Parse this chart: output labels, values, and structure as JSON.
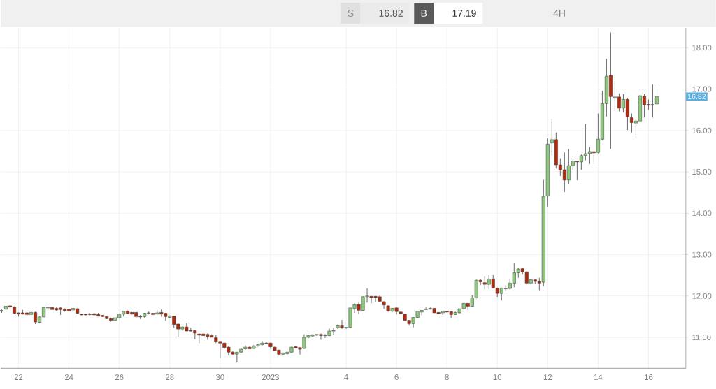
{
  "chart_data": {
    "type": "candlestick",
    "x": [
      "2022-12-21T08:00",
      "2022-12-21T12:00",
      "2022-12-21T16:00",
      "2022-12-21T20:00",
      "2022-12-22T00:00",
      "2022-12-22T04:00",
      "2022-12-22T08:00",
      "2022-12-22T12:00",
      "2022-12-22T16:00",
      "2022-12-22T20:00",
      "2022-12-23T00:00",
      "2022-12-23T04:00",
      "2022-12-23T08:00",
      "2022-12-23T12:00",
      "2022-12-23T16:00",
      "2022-12-23T20:00",
      "2022-12-24T00:00",
      "2022-12-24T04:00",
      "2022-12-24T08:00",
      "2022-12-24T12:00",
      "2022-12-24T16:00",
      "2022-12-24T20:00",
      "2022-12-25T00:00",
      "2022-12-25T04:00",
      "2022-12-25T08:00",
      "2022-12-25T12:00",
      "2022-12-25T16:00",
      "2022-12-25T20:00",
      "2022-12-26T00:00",
      "2022-12-26T04:00",
      "2022-12-26T08:00",
      "2022-12-26T12:00",
      "2022-12-26T16:00",
      "2022-12-26T20:00",
      "2022-12-27T00:00",
      "2022-12-27T04:00",
      "2022-12-27T08:00",
      "2022-12-27T12:00",
      "2022-12-27T16:00",
      "2022-12-27T20:00",
      "2022-12-28T00:00",
      "2022-12-28T04:00",
      "2022-12-28T08:00",
      "2022-12-28T12:00",
      "2022-12-28T16:00",
      "2022-12-28T20:00",
      "2022-12-29T00:00",
      "2022-12-29T04:00",
      "2022-12-29T08:00",
      "2022-12-29T12:00",
      "2022-12-29T16:00",
      "2022-12-29T20:00",
      "2022-12-30T00:00",
      "2022-12-30T04:00",
      "2022-12-30T08:00",
      "2022-12-30T12:00",
      "2022-12-30T16:00",
      "2022-12-30T20:00",
      "2022-12-31T00:00",
      "2022-12-31T04:00",
      "2022-12-31T08:00",
      "2022-12-31T12:00",
      "2022-12-31T16:00",
      "2022-12-31T20:00",
      "2023-01-01T00:00",
      "2023-01-01T04:00",
      "2023-01-01T08:00",
      "2023-01-01T12:00",
      "2023-01-01T16:00",
      "2023-01-01T20:00",
      "2023-01-02T00:00",
      "2023-01-02T04:00",
      "2023-01-02T08:00",
      "2023-01-02T12:00",
      "2023-01-02T16:00",
      "2023-01-02T20:00",
      "2023-01-03T00:00",
      "2023-01-03T04:00",
      "2023-01-03T08:00",
      "2023-01-03T12:00",
      "2023-01-03T16:00",
      "2023-01-03T20:00",
      "2023-01-04T00:00",
      "2023-01-04T04:00",
      "2023-01-04T08:00",
      "2023-01-04T12:00",
      "2023-01-04T16:00",
      "2023-01-04T20:00",
      "2023-01-05T00:00",
      "2023-01-05T04:00",
      "2023-01-05T08:00",
      "2023-01-05T12:00",
      "2023-01-05T16:00",
      "2023-01-05T20:00",
      "2023-01-06T00:00",
      "2023-01-06T04:00",
      "2023-01-06T08:00",
      "2023-01-06T12:00",
      "2023-01-06T16:00",
      "2023-01-06T20:00",
      "2023-01-07T00:00",
      "2023-01-07T04:00",
      "2023-01-07T08:00",
      "2023-01-07T12:00",
      "2023-01-07T16:00",
      "2023-01-07T20:00",
      "2023-01-08T00:00",
      "2023-01-08T04:00",
      "2023-01-08T08:00",
      "2023-01-08T12:00",
      "2023-01-08T16:00",
      "2023-01-08T20:00",
      "2023-01-09T00:00",
      "2023-01-09T04:00",
      "2023-01-09T08:00",
      "2023-01-09T12:00",
      "2023-01-09T16:00",
      "2023-01-09T20:00",
      "2023-01-10T00:00",
      "2023-01-10T04:00",
      "2023-01-10T08:00",
      "2023-01-10T12:00",
      "2023-01-10T16:00",
      "2023-01-10T20:00",
      "2023-01-11T00:00",
      "2023-01-11T04:00",
      "2023-01-11T08:00",
      "2023-01-11T12:00",
      "2023-01-11T16:00",
      "2023-01-11T20:00",
      "2023-01-12T00:00",
      "2023-01-12T04:00",
      "2023-01-12T08:00",
      "2023-01-12T12:00",
      "2023-01-12T16:00",
      "2023-01-12T20:00",
      "2023-01-13T00:00",
      "2023-01-13T04:00",
      "2023-01-13T08:00",
      "2023-01-13T12:00",
      "2023-01-13T16:00",
      "2023-01-13T20:00",
      "2023-01-14T00:00",
      "2023-01-14T04:00",
      "2023-01-14T08:00",
      "2023-01-14T12:00",
      "2023-01-14T16:00",
      "2023-01-14T20:00",
      "2023-01-15T00:00",
      "2023-01-15T04:00",
      "2023-01-15T08:00",
      "2023-01-15T12:00",
      "2023-01-15T16:00",
      "2023-01-15T20:00",
      "2023-01-16T00:00",
      "2023-01-16T04:00",
      "2023-01-16T08:00"
    ],
    "ohlc": [
      [
        11.63,
        11.68,
        11.59,
        11.65
      ],
      [
        11.68,
        11.78,
        11.65,
        11.75
      ],
      [
        11.76,
        11.78,
        11.62,
        11.73
      ],
      [
        11.73,
        11.75,
        11.56,
        11.58
      ],
      [
        11.59,
        11.6,
        11.5,
        11.56
      ],
      [
        11.59,
        11.66,
        11.55,
        11.56
      ],
      [
        11.59,
        11.6,
        11.52,
        11.55
      ],
      [
        11.55,
        11.62,
        11.53,
        11.6
      ],
      [
        11.6,
        11.62,
        11.32,
        11.37
      ],
      [
        11.36,
        11.5,
        11.35,
        11.49
      ],
      [
        11.49,
        11.72,
        11.49,
        11.72
      ],
      [
        11.71,
        11.74,
        11.64,
        11.72
      ],
      [
        11.72,
        11.75,
        11.67,
        11.67
      ],
      [
        11.7,
        11.72,
        11.64,
        11.66
      ],
      [
        11.71,
        11.72,
        11.54,
        11.67
      ],
      [
        11.68,
        11.7,
        11.62,
        11.64
      ],
      [
        11.68,
        11.69,
        11.62,
        11.63
      ],
      [
        11.66,
        11.7,
        11.65,
        11.7
      ],
      [
        11.69,
        11.7,
        11.57,
        11.58
      ],
      [
        11.56,
        11.57,
        11.53,
        11.54
      ],
      [
        11.56,
        11.57,
        11.53,
        11.54
      ],
      [
        11.56,
        11.58,
        11.53,
        11.55
      ],
      [
        11.57,
        11.58,
        11.53,
        11.54
      ],
      [
        11.55,
        11.59,
        11.5,
        11.51
      ],
      [
        11.53,
        11.54,
        11.49,
        11.5
      ],
      [
        11.5,
        11.51,
        11.44,
        11.45
      ],
      [
        11.45,
        11.47,
        11.38,
        11.41
      ],
      [
        11.41,
        11.48,
        11.4,
        11.47
      ],
      [
        11.47,
        11.57,
        11.45,
        11.56
      ],
      [
        11.56,
        11.64,
        11.5,
        11.63
      ],
      [
        11.63,
        11.65,
        11.56,
        11.57
      ],
      [
        11.6,
        11.61,
        11.55,
        11.56
      ],
      [
        11.6,
        11.61,
        11.47,
        11.5
      ],
      [
        11.5,
        11.54,
        11.44,
        11.49
      ],
      [
        11.5,
        11.59,
        11.46,
        11.58
      ],
      [
        11.58,
        11.62,
        11.55,
        11.59
      ],
      [
        11.58,
        11.59,
        11.55,
        11.55
      ],
      [
        11.56,
        11.66,
        11.55,
        11.59
      ],
      [
        11.6,
        11.68,
        11.5,
        11.56
      ],
      [
        11.58,
        11.59,
        11.4,
        11.5
      ],
      [
        11.48,
        11.52,
        11.46,
        11.52
      ],
      [
        11.51,
        11.52,
        11.23,
        11.31
      ],
      [
        11.32,
        11.33,
        11.01,
        11.2
      ],
      [
        11.2,
        11.27,
        11.15,
        11.25
      ],
      [
        11.25,
        11.34,
        11.15,
        11.15
      ],
      [
        11.16,
        11.23,
        11.14,
        11.15
      ],
      [
        11.16,
        11.17,
        10.95,
        11.1
      ],
      [
        11.08,
        11.09,
        10.86,
        11.05
      ],
      [
        11.08,
        11.09,
        11.04,
        11.04
      ],
      [
        11.07,
        11.09,
        10.94,
        11.02
      ],
      [
        11.04,
        11.07,
        11.0,
        11.0
      ],
      [
        10.99,
        11.05,
        10.86,
        10.9
      ],
      [
        10.9,
        10.91,
        10.5,
        10.86
      ],
      [
        10.86,
        10.87,
        10.72,
        10.75
      ],
      [
        10.76,
        10.78,
        10.56,
        10.64
      ],
      [
        10.64,
        10.66,
        10.58,
        10.59
      ],
      [
        10.59,
        10.64,
        10.39,
        10.64
      ],
      [
        10.64,
        10.73,
        10.62,
        10.71
      ],
      [
        10.72,
        10.81,
        10.7,
        10.76
      ],
      [
        10.76,
        10.77,
        10.72,
        10.72
      ],
      [
        10.73,
        10.81,
        10.72,
        10.79
      ],
      [
        10.79,
        10.82,
        10.77,
        10.82
      ],
      [
        10.82,
        10.91,
        10.8,
        10.86
      ],
      [
        10.86,
        10.88,
        10.84,
        10.85
      ],
      [
        10.86,
        10.87,
        10.72,
        10.77
      ],
      [
        10.76,
        10.77,
        10.66,
        10.68
      ],
      [
        10.69,
        10.7,
        10.56,
        10.59
      ],
      [
        10.59,
        10.63,
        10.57,
        10.62
      ],
      [
        10.6,
        10.64,
        10.59,
        10.64
      ],
      [
        10.64,
        10.77,
        10.63,
        10.76
      ],
      [
        10.77,
        10.79,
        10.73,
        10.74
      ],
      [
        10.75,
        10.76,
        10.58,
        10.71
      ],
      [
        10.73,
        11.07,
        10.72,
        11.0
      ],
      [
        11.0,
        11.05,
        10.98,
        11.04
      ],
      [
        11.03,
        11.07,
        11.01,
        11.06
      ],
      [
        11.05,
        11.08,
        11.04,
        11.07
      ],
      [
        11.07,
        11.09,
        10.94,
        11.04
      ],
      [
        11.04,
        11.08,
        10.98,
        11.05
      ],
      [
        11.04,
        11.21,
        11.03,
        11.15
      ],
      [
        11.15,
        11.23,
        11.06,
        11.16
      ],
      [
        11.23,
        11.31,
        11.2,
        11.28
      ],
      [
        11.28,
        11.42,
        11.2,
        11.23
      ],
      [
        11.23,
        11.25,
        11.2,
        11.24
      ],
      [
        11.24,
        11.71,
        11.22,
        11.71
      ],
      [
        11.7,
        11.82,
        11.59,
        11.79
      ],
      [
        11.79,
        11.84,
        11.56,
        11.65
      ],
      [
        11.65,
        11.99,
        11.64,
        11.98
      ],
      [
        11.98,
        12.18,
        11.84,
        12.0
      ],
      [
        11.99,
        12.0,
        11.82,
        11.96
      ],
      [
        11.99,
        12.0,
        11.86,
        11.96
      ],
      [
        11.98,
        12.02,
        11.86,
        11.87
      ],
      [
        11.86,
        11.87,
        11.69,
        11.78
      ],
      [
        11.76,
        11.77,
        11.62,
        11.63
      ],
      [
        11.63,
        11.71,
        11.61,
        11.7
      ],
      [
        11.71,
        11.72,
        11.55,
        11.62
      ],
      [
        11.61,
        11.62,
        11.56,
        11.57
      ],
      [
        11.56,
        11.57,
        11.4,
        11.41
      ],
      [
        11.41,
        11.42,
        11.28,
        11.33
      ],
      [
        11.33,
        11.48,
        11.24,
        11.48
      ],
      [
        11.48,
        11.64,
        11.47,
        11.63
      ],
      [
        11.61,
        11.65,
        11.53,
        11.65
      ],
      [
        11.67,
        11.72,
        11.66,
        11.68
      ],
      [
        11.68,
        11.72,
        11.67,
        11.7
      ],
      [
        11.7,
        11.71,
        11.59,
        11.59
      ],
      [
        11.6,
        11.61,
        11.56,
        11.57
      ],
      [
        11.59,
        11.64,
        11.54,
        11.63
      ],
      [
        11.63,
        11.64,
        11.6,
        11.61
      ],
      [
        11.62,
        11.63,
        11.47,
        11.55
      ],
      [
        11.55,
        11.62,
        11.54,
        11.6
      ],
      [
        11.59,
        11.69,
        11.58,
        11.69
      ],
      [
        11.69,
        11.82,
        11.67,
        11.82
      ],
      [
        11.82,
        11.83,
        11.66,
        11.75
      ],
      [
        11.75,
        12.02,
        11.74,
        11.95
      ],
      [
        11.95,
        12.39,
        11.94,
        12.38
      ],
      [
        12.38,
        12.4,
        12.26,
        12.34
      ],
      [
        12.32,
        12.48,
        12.16,
        12.28
      ],
      [
        12.28,
        12.5,
        12.16,
        12.41
      ],
      [
        12.41,
        12.5,
        12.18,
        12.2
      ],
      [
        12.19,
        12.2,
        11.98,
        12.06
      ],
      [
        12.06,
        12.2,
        11.89,
        12.19
      ],
      [
        12.17,
        12.26,
        12.11,
        12.18
      ],
      [
        12.18,
        12.41,
        12.15,
        12.31
      ],
      [
        12.31,
        12.8,
        12.21,
        12.56
      ],
      [
        12.56,
        12.67,
        12.44,
        12.65
      ],
      [
        12.66,
        12.67,
        12.52,
        12.58
      ],
      [
        12.58,
        12.6,
        12.27,
        12.31
      ],
      [
        12.31,
        12.4,
        12.27,
        12.39
      ],
      [
        12.39,
        12.4,
        12.29,
        12.35
      ],
      [
        12.35,
        12.44,
        12.14,
        12.31
      ],
      [
        12.33,
        14.81,
        12.24,
        14.41
      ],
      [
        14.42,
        15.81,
        14.16,
        15.67
      ],
      [
        15.7,
        16.28,
        15.4,
        15.78
      ],
      [
        15.78,
        15.95,
        15.08,
        15.17
      ],
      [
        15.17,
        15.33,
        14.9,
        15.05
      ],
      [
        15.05,
        15.47,
        14.51,
        14.8
      ],
      [
        14.8,
        15.55,
        14.7,
        15.15
      ],
      [
        15.15,
        15.32,
        15.05,
        15.26
      ],
      [
        15.26,
        15.27,
        14.8,
        15.24
      ],
      [
        15.24,
        15.42,
        15.05,
        15.39
      ],
      [
        15.39,
        16.16,
        15.28,
        15.44
      ],
      [
        15.44,
        15.6,
        15.19,
        15.49
      ],
      [
        15.49,
        15.5,
        15.19,
        15.46
      ],
      [
        15.47,
        16.41,
        15.45,
        15.79
      ],
      [
        15.79,
        16.96,
        15.76,
        16.65
      ],
      [
        16.65,
        17.73,
        16.34,
        17.31
      ],
      [
        17.33,
        18.37,
        15.56,
        16.82
      ],
      [
        16.78,
        17.19,
        16.46,
        16.81
      ],
      [
        16.81,
        16.89,
        16.46,
        16.54
      ],
      [
        16.54,
        16.88,
        16.44,
        16.75
      ],
      [
        16.75,
        16.79,
        16.01,
        16.33
      ],
      [
        16.31,
        16.41,
        15.95,
        16.19
      ],
      [
        16.18,
        16.28,
        15.84,
        16.23
      ],
      [
        16.23,
        16.89,
        16.09,
        16.84
      ],
      [
        16.83,
        16.88,
        16.31,
        16.62
      ],
      [
        16.63,
        16.75,
        16.5,
        16.61
      ],
      [
        16.61,
        17.12,
        16.31,
        16.63
      ],
      [
        16.64,
        17.01,
        16.6,
        16.82
      ]
    ],
    "colors": [
      "#8cc97b",
      "#8cc97b",
      "#b3290b",
      "#b3290b",
      "#b3290b",
      "#b3290b",
      "#b3290b",
      "#8cc97b",
      "#b3290b",
      "#8cc97b",
      "#8cc97b",
      "#8cc97b",
      "#b3290b",
      "#b3290b",
      "#b3290b",
      "#b3290b",
      "#b3290b",
      "#8cc97b",
      "#b3290b",
      "#b3290b",
      "#b3290b",
      "#b3290b",
      "#b3290b",
      "#b3290b",
      "#b3290b",
      "#b3290b",
      "#b3290b",
      "#8cc97b",
      "#8cc97b",
      "#8cc97b",
      "#b3290b",
      "#b3290b",
      "#b3290b",
      "#b3290b",
      "#8cc97b",
      "#8cc97b",
      "#b3290b",
      "#8cc97b",
      "#b3290b",
      "#b3290b",
      "#8cc97b",
      "#b3290b",
      "#b3290b",
      "#8cc97b",
      "#b3290b",
      "#b3290b",
      "#b3290b",
      "#b3290b",
      "#b3290b",
      "#b3290b",
      "#b3290b",
      "#b3290b",
      "#b3290b",
      "#b3290b",
      "#b3290b",
      "#b3290b",
      "#8cc97b",
      "#8cc97b",
      "#8cc97b",
      "#b3290b",
      "#8cc97b",
      "#8cc97b",
      "#8cc97b",
      "#b3290b",
      "#b3290b",
      "#b3290b",
      "#b3290b",
      "#8cc97b",
      "#8cc97b",
      "#8cc97b",
      "#b3290b",
      "#b3290b",
      "#8cc97b",
      "#8cc97b",
      "#8cc97b",
      "#8cc97b",
      "#b3290b",
      "#8cc97b",
      "#8cc97b",
      "#8cc97b",
      "#8cc97b",
      "#b3290b",
      "#8cc97b",
      "#8cc97b",
      "#8cc97b",
      "#b3290b",
      "#8cc97b",
      "#8cc97b",
      "#b3290b",
      "#b3290b",
      "#b3290b",
      "#b3290b",
      "#b3290b",
      "#8cc97b",
      "#b3290b",
      "#b3290b",
      "#b3290b",
      "#b3290b",
      "#8cc97b",
      "#8cc97b",
      "#8cc97b",
      "#8cc97b",
      "#8cc97b",
      "#b3290b",
      "#b3290b",
      "#8cc97b",
      "#b3290b",
      "#b3290b",
      "#8cc97b",
      "#8cc97b",
      "#8cc97b",
      "#b3290b",
      "#8cc97b",
      "#8cc97b",
      "#b3290b",
      "#b3290b",
      "#8cc97b",
      "#b3290b",
      "#b3290b",
      "#8cc97b",
      "#8cc97b",
      "#8cc97b",
      "#8cc97b",
      "#8cc97b",
      "#b3290b",
      "#b3290b",
      "#8cc97b",
      "#b3290b",
      "#b3290b",
      "#8cc97b",
      "#8cc97b",
      "#8cc97b",
      "#b3290b",
      "#b3290b",
      "#b3290b",
      "#8cc97b",
      "#8cc97b",
      "#b3290b",
      "#8cc97b",
      "#8cc97b",
      "#8cc97b",
      "#b3290b",
      "#8cc97b",
      "#8cc97b",
      "#8cc97b",
      "#b3290b",
      "#8cc97b",
      "#b3290b",
      "#8cc97b",
      "#b3290b",
      "#b3290b",
      "#8cc97b",
      "#8cc97b",
      "#b3290b",
      "#b3290b",
      "#8cc97b",
      "#8cc97b"
    ],
    "xlim": [
      "2022-12-21T07:00",
      "2023-01-17T11:30"
    ],
    "xticks": [
      {
        "value": "2022-12-22",
        "label": "22"
      },
      {
        "value": "2022-12-24",
        "label": "24"
      },
      {
        "value": "2022-12-26",
        "label": "26"
      },
      {
        "value": "2022-12-28",
        "label": "28"
      },
      {
        "value": "2022-12-30",
        "label": "30"
      },
      {
        "value": "2023-01-01",
        "label": "2023"
      },
      {
        "value": "2023-01-04",
        "label": "4"
      },
      {
        "value": "2023-01-06",
        "label": "6"
      },
      {
        "value": "2023-01-08",
        "label": "8"
      },
      {
        "value": "2023-01-10",
        "label": "10"
      },
      {
        "value": "2023-01-12",
        "label": "12"
      },
      {
        "value": "2023-01-14",
        "label": "14"
      },
      {
        "value": "2023-01-16",
        "label": "16"
      }
    ],
    "ylim": [
      10.25,
      18.48
    ],
    "yticks": [
      {
        "value": 11,
        "label": "11.00"
      },
      {
        "value": 12,
        "label": "12.00"
      },
      {
        "value": 13,
        "label": "13.00"
      },
      {
        "value": 14,
        "label": "14.00"
      },
      {
        "value": 15,
        "label": "15.00"
      },
      {
        "value": 16,
        "label": "16.00"
      },
      {
        "value": 17,
        "label": "17.00"
      },
      {
        "value": 18,
        "label": "18.00"
      }
    ],
    "grid": true,
    "annotations": [
      "S",
      "16.82",
      "B",
      "17.19",
      "4H",
      {
        "text": "16.82",
        "y": 16.82
      }
    ]
  }
}
